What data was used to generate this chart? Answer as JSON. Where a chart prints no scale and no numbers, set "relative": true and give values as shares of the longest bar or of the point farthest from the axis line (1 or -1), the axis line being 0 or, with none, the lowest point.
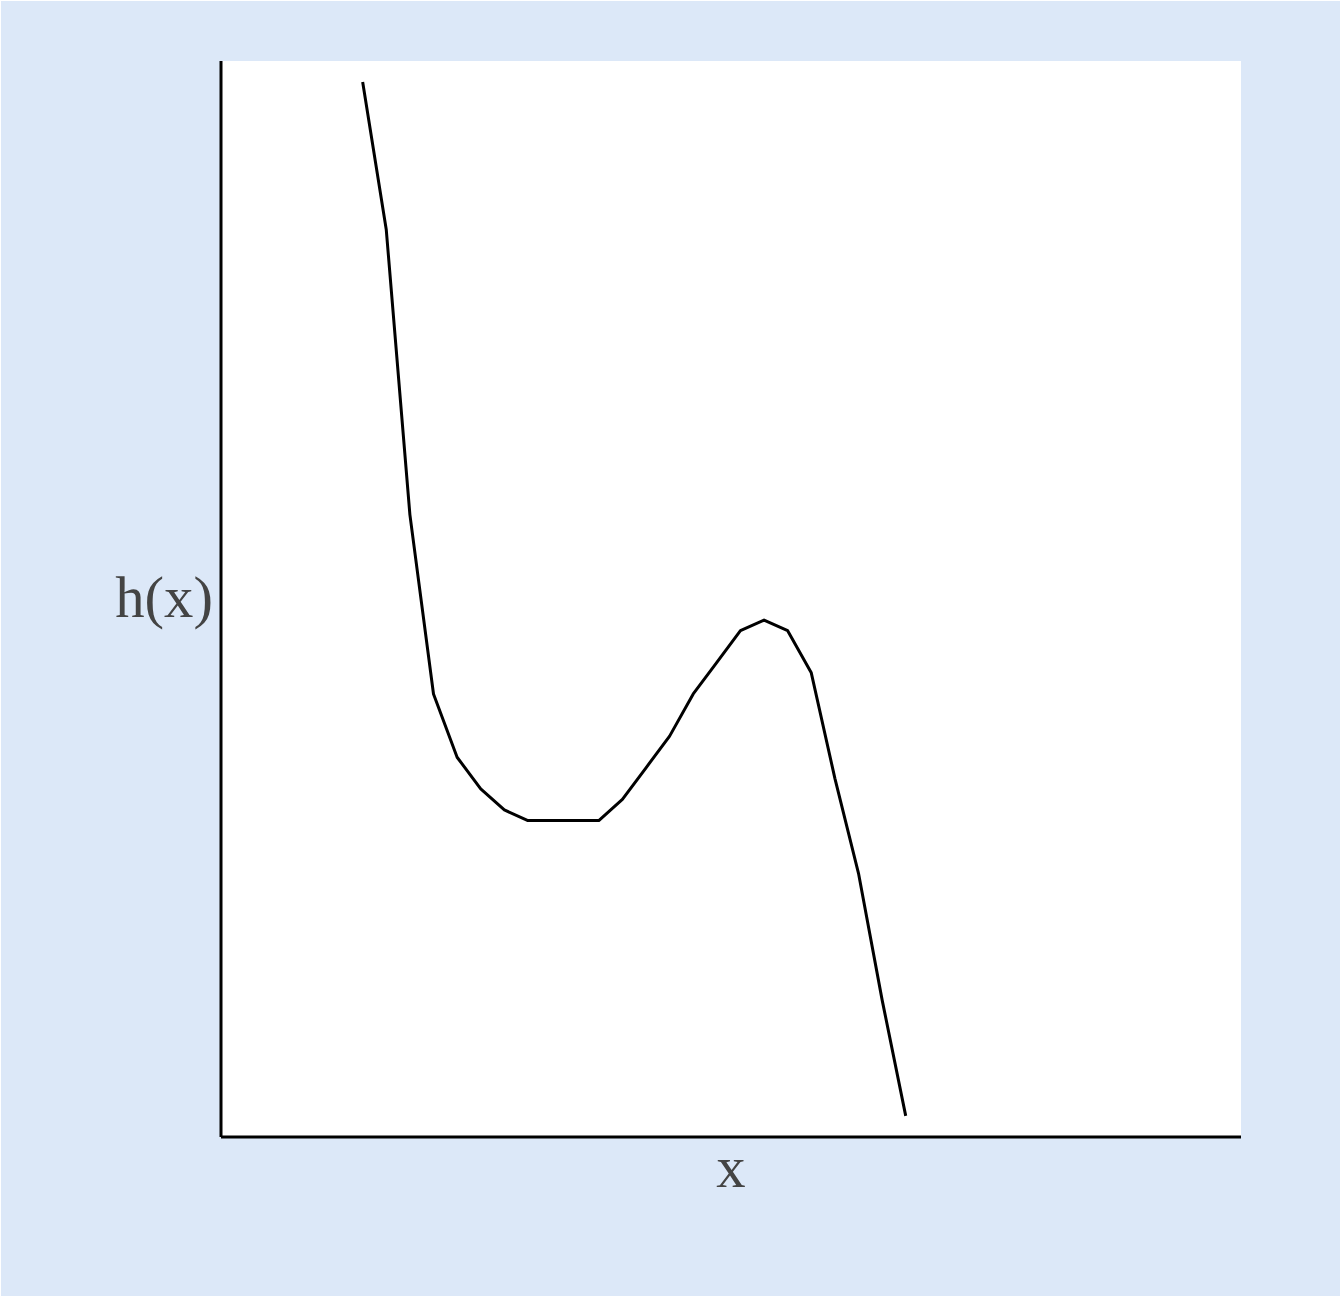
{
  "chart_data": {
    "type": "line",
    "relative": true,
    "xlabel": "x",
    "ylabel": "h(x)",
    "color": "#000000",
    "marker": "none",
    "line_style": "solid",
    "categories": [
      null,
      null,
      null,
      null,
      null,
      null,
      null,
      null,
      null,
      null,
      null,
      null,
      null,
      null,
      null,
      null,
      null,
      null,
      null,
      null,
      null,
      null,
      null,
      null
    ],
    "values": [
      1.0,
      0.86,
      0.59,
      0.42,
      0.36,
      0.33,
      0.31,
      0.3,
      0.3,
      0.3,
      0.3,
      0.32,
      0.35,
      0.38,
      0.42,
      0.45,
      0.48,
      0.49,
      0.48,
      0.44,
      0.34,
      0.25,
      0.13,
      0.02
    ]
  }
}
